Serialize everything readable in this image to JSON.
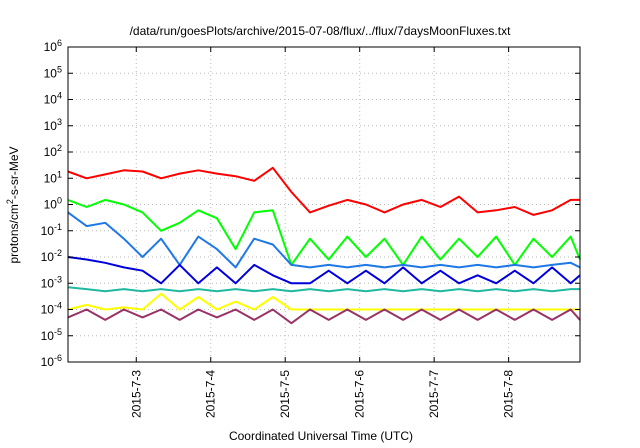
{
  "chart_data": {
    "type": "line",
    "title": "/data/run/goesPlots/archive/2015-07-08/flux/../flux/7daysMoonFluxes.txt",
    "xlabel": "Coordinated Universal Time (UTC)",
    "ylabel": {
      "base": "protons/cm",
      "sup": "2",
      "rest": "-s-sr-MeV"
    },
    "y_scale": "log",
    "ylim": [
      1e-06,
      1000000.0
    ],
    "y_ticks": [
      {
        "value": 1e-06,
        "base": "10",
        "exp": "-6"
      },
      {
        "value": 1e-05,
        "base": "10",
        "exp": "-5"
      },
      {
        "value": 0.0001,
        "base": "10",
        "exp": "-4"
      },
      {
        "value": 0.001,
        "base": "10",
        "exp": "-3"
      },
      {
        "value": 0.01,
        "base": "10",
        "exp": "-2"
      },
      {
        "value": 0.1,
        "base": "10",
        "exp": "-1"
      },
      {
        "value": 1,
        "base": "10",
        "exp": "0"
      },
      {
        "value": 10,
        "base": "10",
        "exp": "1"
      },
      {
        "value": 100,
        "base": "10",
        "exp": "2"
      },
      {
        "value": 1000,
        "base": "10",
        "exp": "3"
      },
      {
        "value": 10000,
        "base": "10",
        "exp": "4"
      },
      {
        "value": 100000,
        "base": "10",
        "exp": "5"
      },
      {
        "value": 1000000,
        "base": "10",
        "exp": "6"
      }
    ],
    "xlim": [
      "2015-07-02 02:00",
      "2015-07-08 23:00"
    ],
    "x_ticks": [
      "2015-7-3",
      "2015-7-4",
      "2015-7-5",
      "2015-7-6",
      "2015-7-7",
      "2015-7-8"
    ],
    "grid": true,
    "legend": "none",
    "series": [
      {
        "color": "#ff0000",
        "x": [
          "2015-07-02 02:00",
          "2015-07-02 08:00",
          "2015-07-02 14:00",
          "2015-07-02 20:00",
          "2015-07-03 02:00",
          "2015-07-03 08:00",
          "2015-07-03 14:00",
          "2015-07-03 20:00",
          "2015-07-04 02:00",
          "2015-07-04 08:00",
          "2015-07-04 14:00",
          "2015-07-04 20:00",
          "2015-07-05 02:00",
          "2015-07-05 08:00",
          "2015-07-05 14:00",
          "2015-07-05 20:00",
          "2015-07-06 02:00",
          "2015-07-06 08:00",
          "2015-07-06 14:00",
          "2015-07-06 20:00",
          "2015-07-07 02:00",
          "2015-07-07 08:00",
          "2015-07-07 14:00",
          "2015-07-07 20:00",
          "2015-07-08 02:00",
          "2015-07-08 08:00",
          "2015-07-08 14:00",
          "2015-07-08 20:00",
          "2015-07-08 23:00"
        ],
        "y": [
          18,
          10,
          14,
          20,
          18,
          10,
          15,
          20,
          15,
          12,
          8,
          25,
          3,
          0.5,
          0.9,
          1.5,
          1,
          0.5,
          1,
          1.5,
          0.8,
          2,
          0.5,
          0.6,
          0.8,
          0.4,
          0.6,
          1.5,
          1.5
        ]
      },
      {
        "color": "#00ff00",
        "x": [
          "2015-07-02 02:00",
          "2015-07-02 08:00",
          "2015-07-02 14:00",
          "2015-07-02 20:00",
          "2015-07-03 02:00",
          "2015-07-03 08:00",
          "2015-07-03 14:00",
          "2015-07-03 20:00",
          "2015-07-04 02:00",
          "2015-07-04 08:00",
          "2015-07-04 14:00",
          "2015-07-04 20:00",
          "2015-07-05 02:00",
          "2015-07-05 08:00",
          "2015-07-05 14:00",
          "2015-07-05 20:00",
          "2015-07-06 02:00",
          "2015-07-06 08:00",
          "2015-07-06 14:00",
          "2015-07-06 20:00",
          "2015-07-07 02:00",
          "2015-07-07 08:00",
          "2015-07-07 14:00",
          "2015-07-07 20:00",
          "2015-07-08 02:00",
          "2015-07-08 08:00",
          "2015-07-08 14:00",
          "2015-07-08 20:00",
          "2015-07-08 23:00"
        ],
        "y": [
          1.5,
          0.8,
          1.5,
          1,
          0.5,
          0.1,
          0.2,
          0.6,
          0.3,
          0.02,
          0.5,
          0.6,
          0.005,
          0.05,
          0.008,
          0.06,
          0.01,
          0.05,
          0.005,
          0.06,
          0.008,
          0.05,
          0.01,
          0.06,
          0.005,
          0.05,
          0.01,
          0.06,
          0.008
        ]
      },
      {
        "color": "#1e78e6",
        "x": [
          "2015-07-02 02:00",
          "2015-07-02 08:00",
          "2015-07-02 14:00",
          "2015-07-02 20:00",
          "2015-07-03 02:00",
          "2015-07-03 08:00",
          "2015-07-03 14:00",
          "2015-07-03 20:00",
          "2015-07-04 02:00",
          "2015-07-04 08:00",
          "2015-07-04 14:00",
          "2015-07-04 20:00",
          "2015-07-05 02:00",
          "2015-07-05 08:00",
          "2015-07-05 14:00",
          "2015-07-05 20:00",
          "2015-07-06 02:00",
          "2015-07-06 08:00",
          "2015-07-06 14:00",
          "2015-07-06 20:00",
          "2015-07-07 02:00",
          "2015-07-07 08:00",
          "2015-07-07 14:00",
          "2015-07-07 20:00",
          "2015-07-08 02:00",
          "2015-07-08 08:00",
          "2015-07-08 14:00",
          "2015-07-08 20:00",
          "2015-07-08 23:00"
        ],
        "y": [
          0.5,
          0.15,
          0.2,
          0.05,
          0.01,
          0.05,
          0.005,
          0.06,
          0.02,
          0.004,
          0.05,
          0.03,
          0.005,
          0.004,
          0.005,
          0.004,
          0.005,
          0.004,
          0.005,
          0.004,
          0.005,
          0.004,
          0.005,
          0.004,
          0.005,
          0.004,
          0.005,
          0.006,
          0.004
        ]
      },
      {
        "color": "#0000dd",
        "x": [
          "2015-07-02 02:00",
          "2015-07-02 08:00",
          "2015-07-02 14:00",
          "2015-07-02 20:00",
          "2015-07-03 02:00",
          "2015-07-03 08:00",
          "2015-07-03 14:00",
          "2015-07-03 20:00",
          "2015-07-04 02:00",
          "2015-07-04 08:00",
          "2015-07-04 14:00",
          "2015-07-04 20:00",
          "2015-07-05 02:00",
          "2015-07-05 08:00",
          "2015-07-05 14:00",
          "2015-07-05 20:00",
          "2015-07-06 02:00",
          "2015-07-06 08:00",
          "2015-07-06 14:00",
          "2015-07-06 20:00",
          "2015-07-07 02:00",
          "2015-07-07 08:00",
          "2015-07-07 14:00",
          "2015-07-07 20:00",
          "2015-07-08 02:00",
          "2015-07-08 08:00",
          "2015-07-08 14:00",
          "2015-07-08 20:00",
          "2015-07-08 23:00"
        ],
        "y": [
          0.01,
          0.008,
          0.006,
          0.004,
          0.003,
          0.001,
          0.005,
          0.001,
          0.004,
          0.001,
          0.005,
          0.002,
          0.001,
          0.001,
          0.003,
          0.001,
          0.003,
          0.001,
          0.004,
          0.001,
          0.003,
          0.001,
          0.002,
          0.001,
          0.003,
          0.001,
          0.004,
          0.001,
          0.002
        ]
      },
      {
        "color": "#20b8a0",
        "x": [
          "2015-07-02 02:00",
          "2015-07-02 08:00",
          "2015-07-02 14:00",
          "2015-07-02 20:00",
          "2015-07-03 02:00",
          "2015-07-03 08:00",
          "2015-07-03 14:00",
          "2015-07-03 20:00",
          "2015-07-04 02:00",
          "2015-07-04 08:00",
          "2015-07-04 14:00",
          "2015-07-04 20:00",
          "2015-07-05 02:00",
          "2015-07-05 08:00",
          "2015-07-05 14:00",
          "2015-07-05 20:00",
          "2015-07-06 02:00",
          "2015-07-06 08:00",
          "2015-07-06 14:00",
          "2015-07-06 20:00",
          "2015-07-07 02:00",
          "2015-07-07 08:00",
          "2015-07-07 14:00",
          "2015-07-07 20:00",
          "2015-07-08 02:00",
          "2015-07-08 08:00",
          "2015-07-08 14:00",
          "2015-07-08 20:00",
          "2015-07-08 23:00"
        ],
        "y": [
          0.0007,
          0.0006,
          0.0005,
          0.0006,
          0.0005,
          0.0006,
          0.0005,
          0.0006,
          0.0005,
          0.0006,
          0.0005,
          0.0006,
          0.0005,
          0.0006,
          0.0005,
          0.0006,
          0.0005,
          0.0006,
          0.0005,
          0.0006,
          0.0005,
          0.0006,
          0.0005,
          0.0006,
          0.0005,
          0.0006,
          0.0005,
          0.0006,
          0.0006
        ]
      },
      {
        "color": "#ffff00",
        "x": [
          "2015-07-02 02:00",
          "2015-07-02 08:00",
          "2015-07-02 14:00",
          "2015-07-02 20:00",
          "2015-07-03 02:00",
          "2015-07-03 08:00",
          "2015-07-03 14:00",
          "2015-07-03 20:00",
          "2015-07-04 02:00",
          "2015-07-04 08:00",
          "2015-07-04 14:00",
          "2015-07-04 20:00",
          "2015-07-05 02:00",
          "2015-07-05 08:00",
          "2015-07-05 14:00",
          "2015-07-05 20:00",
          "2015-07-06 02:00",
          "2015-07-06 08:00",
          "2015-07-06 14:00",
          "2015-07-06 20:00",
          "2015-07-07 02:00",
          "2015-07-07 08:00",
          "2015-07-07 14:00",
          "2015-07-07 20:00",
          "2015-07-08 02:00",
          "2015-07-08 08:00",
          "2015-07-08 14:00",
          "2015-07-08 20:00",
          "2015-07-08 23:00"
        ],
        "y": [
          0.0001,
          0.00015,
          0.0001,
          0.00012,
          0.0001,
          0.0004,
          0.0001,
          0.0003,
          0.0001,
          0.0002,
          0.0001,
          0.0003,
          0.0001,
          0.0001,
          0.0001,
          0.0001,
          0.0001,
          0.0001,
          0.0001,
          0.0001,
          0.0001,
          0.0001,
          0.0001,
          0.0001,
          0.0001,
          0.0001,
          0.0001,
          0.0001,
          0.0001
        ]
      },
      {
        "color": "#993366",
        "x": [
          "2015-07-02 02:00",
          "2015-07-02 08:00",
          "2015-07-02 14:00",
          "2015-07-02 20:00",
          "2015-07-03 02:00",
          "2015-07-03 08:00",
          "2015-07-03 14:00",
          "2015-07-03 20:00",
          "2015-07-04 02:00",
          "2015-07-04 08:00",
          "2015-07-04 14:00",
          "2015-07-04 20:00",
          "2015-07-05 02:00",
          "2015-07-05 08:00",
          "2015-07-05 14:00",
          "2015-07-05 20:00",
          "2015-07-06 02:00",
          "2015-07-06 08:00",
          "2015-07-06 14:00",
          "2015-07-06 20:00",
          "2015-07-07 02:00",
          "2015-07-07 08:00",
          "2015-07-07 14:00",
          "2015-07-07 20:00",
          "2015-07-08 02:00",
          "2015-07-08 08:00",
          "2015-07-08 14:00",
          "2015-07-08 20:00",
          "2015-07-08 23:00"
        ],
        "y": [
          5e-05,
          0.0001,
          4e-05,
          0.0001,
          5e-05,
          0.0001,
          4e-05,
          0.0001,
          5e-05,
          0.0001,
          4e-05,
          0.0001,
          3e-05,
          0.0001,
          4e-05,
          0.0001,
          4e-05,
          0.0001,
          4e-05,
          0.0001,
          4e-05,
          0.0001,
          4e-05,
          0.0001,
          4e-05,
          0.0001,
          4e-05,
          0.0001,
          4e-05
        ]
      }
    ]
  }
}
